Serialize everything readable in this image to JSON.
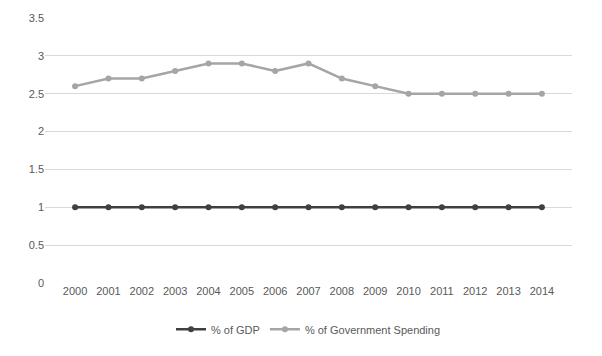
{
  "chart_data": {
    "type": "line",
    "categories": [
      "2000",
      "2001",
      "2002",
      "2003",
      "2004",
      "2005",
      "2006",
      "2007",
      "2008",
      "2009",
      "2010",
      "2011",
      "2012",
      "2013",
      "2014"
    ],
    "series": [
      {
        "name": "% of GDP",
        "color": "#404040",
        "values": [
          1,
          1,
          1,
          1,
          1,
          1,
          1,
          1,
          1,
          1,
          1,
          1,
          1,
          1,
          1
        ]
      },
      {
        "name": "% of Government Spending",
        "color": "#a5a5a5",
        "values": [
          2.6,
          2.7,
          2.7,
          2.8,
          2.9,
          2.9,
          2.8,
          2.9,
          2.7,
          2.6,
          2.5,
          2.5,
          2.5,
          2.5,
          2.5
        ]
      }
    ],
    "ylim": [
      0,
      3.5
    ],
    "yticks": [
      0,
      0.5,
      1,
      1.5,
      2,
      2.5,
      3,
      3.5
    ],
    "grid": true,
    "legend": "bottom",
    "marker": "circle"
  }
}
